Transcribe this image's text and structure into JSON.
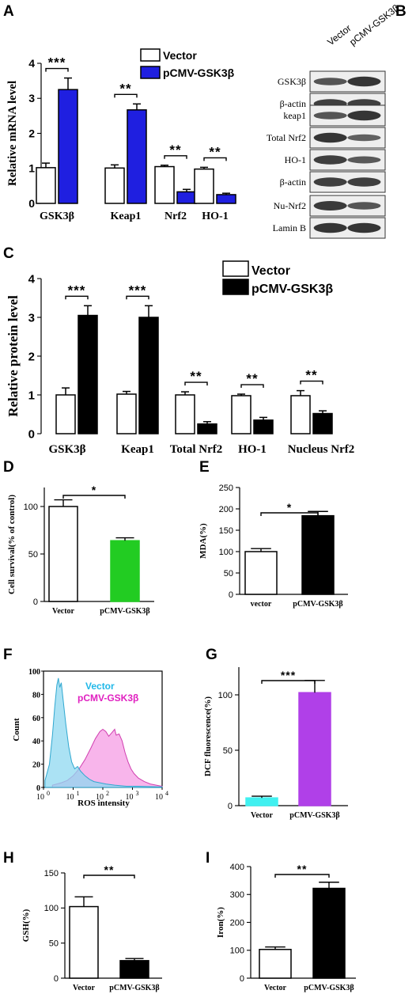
{
  "panel_letters": [
    "A",
    "B",
    "C",
    "D",
    "E",
    "F",
    "G",
    "H",
    "I"
  ],
  "colors": {
    "blue": "#1f1fe0",
    "black": "#000000",
    "green": "#22cc22",
    "purple": "#b040e8",
    "cyan": "#40f0f0",
    "flow_cyan": "#8fd8f0",
    "flow_magenta": "#f7a8e8",
    "magenta_text": "#e020c0",
    "cyan_text": "#20b8e8"
  },
  "blot": {
    "headers": [
      "Vector",
      "pCMV-GSK3β"
    ],
    "groups": [
      {
        "rows": [
          {
            "label": "GSK3β",
            "bands": [
              0.55,
              0.85
            ]
          },
          {
            "label": "β-actin",
            "bands": [
              0.75,
              0.75
            ]
          }
        ]
      },
      {
        "rows": [
          {
            "label": "keap1",
            "bands": [
              0.55,
              0.85
            ]
          },
          {
            "label": "Total Nrf2",
            "bands": [
              0.85,
              0.45
            ]
          },
          {
            "label": "HO-1",
            "bands": [
              0.75,
              0.5
            ]
          },
          {
            "label": "β-actin",
            "bands": [
              0.75,
              0.75
            ]
          }
        ]
      },
      {
        "rows": [
          {
            "label": "Nu-Nrf2",
            "bands": [
              0.8,
              0.55
            ]
          },
          {
            "label": "Lamin B",
            "bands": [
              0.85,
              0.85
            ]
          }
        ]
      }
    ]
  },
  "flow": {
    "ylabel": "Count",
    "xlabel": "ROS intensity",
    "yticks": [
      "0",
      "20",
      "40",
      "60",
      "80",
      "100"
    ],
    "xticks": [
      {
        "base": "10",
        "exp": "0"
      },
      {
        "base": "10",
        "exp": "1"
      },
      {
        "base": "10",
        "exp": "2"
      },
      {
        "base": "10",
        "exp": "3"
      },
      {
        "base": "10",
        "exp": "4"
      }
    ],
    "legend": [
      "Vector",
      "pCMV-GSK3β"
    ]
  },
  "chart_data": [
    {
      "panel": "A",
      "type": "bar",
      "ylabel": "Relative mRNA level",
      "ylim": [
        0,
        4
      ],
      "yticks": [
        0,
        1,
        2,
        3,
        4
      ],
      "categories": [
        "GSK3β",
        "Keap1",
        "Nrf2",
        "HO-1"
      ],
      "series": [
        {
          "name": "Vector",
          "values": [
            1.02,
            1.01,
            1.05,
            0.98
          ],
          "errors": [
            0.13,
            0.09,
            0.04,
            0.05
          ]
        },
        {
          "name": "pCMV-GSK3β",
          "values": [
            3.25,
            2.67,
            0.33,
            0.25
          ],
          "errors": [
            0.33,
            0.17,
            0.07,
            0.04
          ]
        }
      ],
      "significance": [
        "***",
        "**",
        "**",
        "**"
      ]
    },
    {
      "panel": "C",
      "type": "bar",
      "ylabel": "Relative protein level",
      "ylim": [
        0,
        4
      ],
      "yticks": [
        0,
        1,
        2,
        3,
        4
      ],
      "categories": [
        "GSK3β",
        "Keap1",
        "Total Nrf2",
        "HO-1",
        "Nucleus Nrf2"
      ],
      "series": [
        {
          "name": "Vector",
          "values": [
            1.0,
            1.02,
            1.0,
            0.98,
            0.98
          ],
          "errors": [
            0.18,
            0.07,
            0.08,
            0.04,
            0.13
          ]
        },
        {
          "name": "pCMV-GSK3β",
          "values": [
            3.05,
            3.0,
            0.25,
            0.35,
            0.52
          ],
          "errors": [
            0.25,
            0.3,
            0.06,
            0.07,
            0.07
          ]
        }
      ],
      "significance": [
        "***",
        "***",
        "**",
        "**",
        "**"
      ]
    },
    {
      "panel": "D",
      "type": "bar",
      "ylabel": "Cell survival(% of control)",
      "ylim": [
        0,
        120
      ],
      "yticks": [
        0,
        50,
        100
      ],
      "categories": [
        "Vector",
        "pCMV-GSK3β"
      ],
      "values": [
        100,
        64
      ],
      "errors": [
        7,
        3
      ],
      "significance": "*"
    },
    {
      "panel": "E",
      "type": "bar",
      "ylabel": "MDA(%)",
      "ylim": [
        0,
        250
      ],
      "yticks": [
        0,
        50,
        100,
        150,
        200,
        250
      ],
      "categories": [
        "vector",
        "pCMV-GSK3β"
      ],
      "values": [
        100,
        184
      ],
      "errors": [
        7,
        10
      ],
      "significance": "*"
    },
    {
      "panel": "G",
      "type": "bar",
      "ylabel": "DCF fluorescence(%)",
      "ylim": [
        0,
        125
      ],
      "yticks": [
        0,
        50,
        100
      ],
      "categories": [
        "Vector",
        "pCMV-GSK3β"
      ],
      "values": [
        7,
        102
      ],
      "errors": [
        1.5,
        11
      ],
      "significance": "***"
    },
    {
      "panel": "H",
      "type": "bar",
      "ylabel": "GSH(%)",
      "ylim": [
        0,
        150
      ],
      "yticks": [
        0,
        50,
        100,
        150
      ],
      "categories": [
        "Vector",
        "pCMV-GSK3β"
      ],
      "values": [
        102,
        25
      ],
      "errors": [
        14,
        3
      ],
      "significance": "**"
    },
    {
      "panel": "I",
      "type": "bar",
      "ylabel": "Iron(%)",
      "ylim": [
        0,
        400
      ],
      "yticks": [
        0,
        100,
        200,
        300,
        400
      ],
      "categories": [
        "Vector",
        "pCMV-GSK3β"
      ],
      "values": [
        103,
        322
      ],
      "errors": [
        9,
        22
      ],
      "significance": "**"
    }
  ]
}
